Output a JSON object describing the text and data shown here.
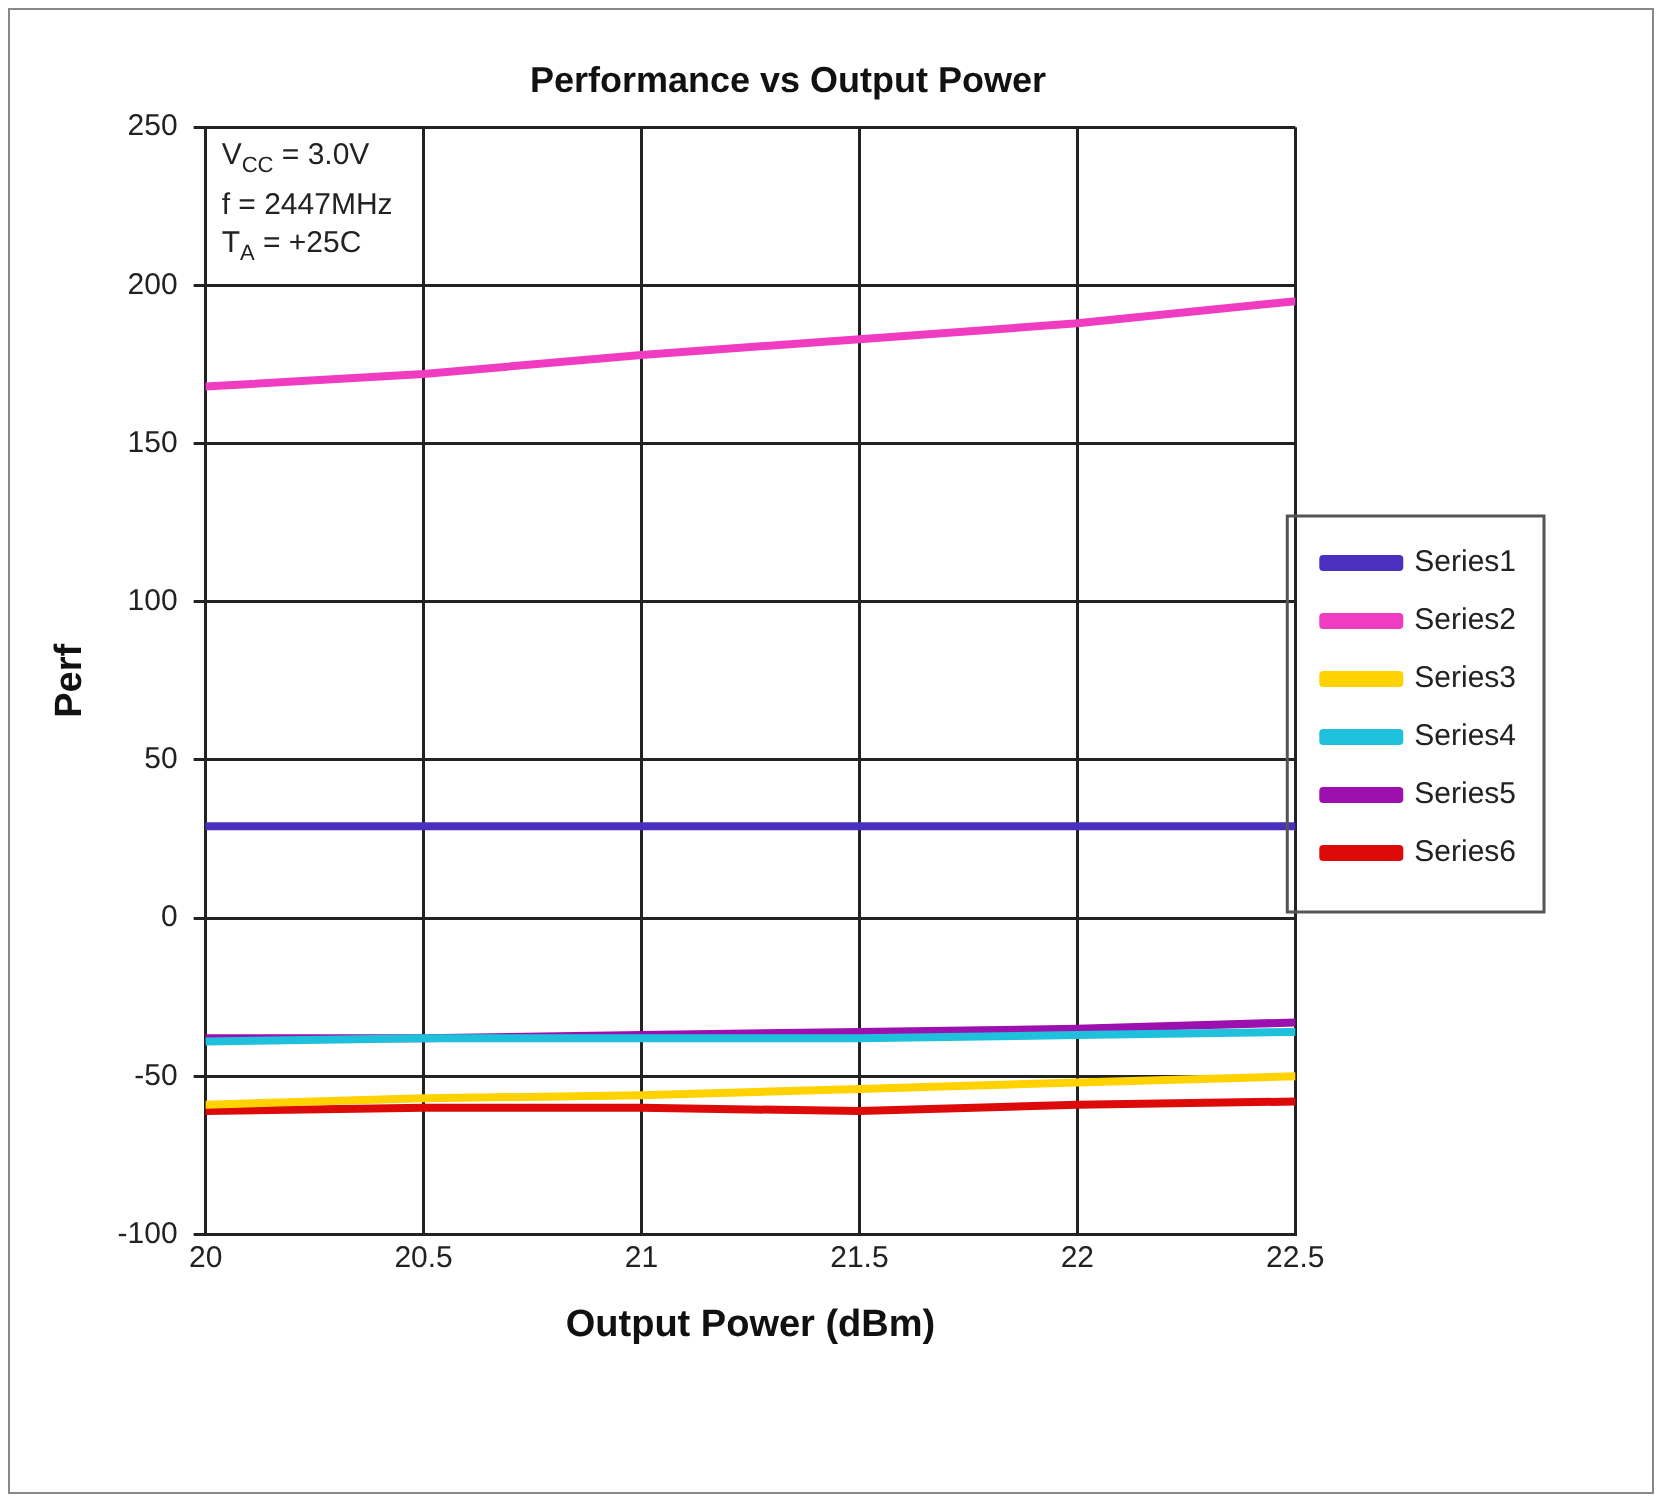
{
  "chart_data": {
    "type": "line",
    "title": "Performance vs Output Power",
    "xlabel": "Output Power (dBm)",
    "ylabel": "Perf",
    "x": [
      20,
      20.5,
      21,
      21.5,
      22,
      22.5
    ],
    "series": [
      {
        "name": "Series1",
        "color": "#4b2fbf",
        "values": [
          29,
          29,
          29,
          29,
          29,
          29
        ]
      },
      {
        "name": "Series2",
        "color": "#f03cc0",
        "values": [
          168,
          172,
          178,
          183,
          188,
          195
        ]
      },
      {
        "name": "Series3",
        "color": "#ffd200",
        "values": [
          -59,
          -57,
          -56,
          -54,
          -52,
          -50
        ]
      },
      {
        "name": "Series4",
        "color": "#1fc0dc",
        "values": [
          -39,
          -38,
          -38,
          -38,
          -37,
          -36
        ]
      },
      {
        "name": "Series5",
        "color": "#9c10b0",
        "values": [
          -38,
          -38,
          -37,
          -36,
          -35,
          -33
        ]
      },
      {
        "name": "Series6",
        "color": "#dd0a0a",
        "values": [
          -61,
          -60,
          -60,
          -61,
          -59,
          -58
        ]
      }
    ],
    "xlim": [
      20,
      22.5
    ],
    "xticks": [
      20,
      20.5,
      21,
      21.5,
      22,
      22.5
    ],
    "ylim": [
      -100,
      250
    ],
    "yticks": [
      -100,
      -50,
      0,
      50,
      100,
      150,
      200,
      250
    ],
    "grid": true,
    "legend": "right",
    "marker": "none",
    "line_style": "solid",
    "annotations": [
      "V$_{CC}$ = 3.0V",
      "f = 2447MHz",
      "T$_{A}$ = +25C"
    ]
  }
}
